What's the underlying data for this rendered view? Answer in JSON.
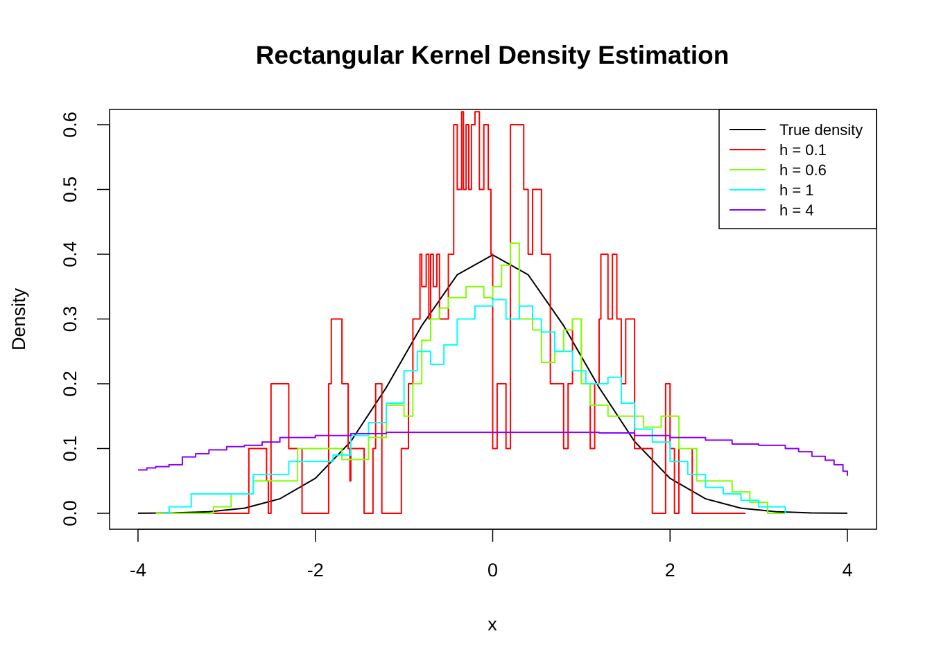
{
  "chart_data": {
    "type": "line",
    "title": "Rectangular Kernel Density Estimation",
    "xlabel": "x",
    "ylabel": "Density",
    "xlim": [
      -4,
      4
    ],
    "ylim": [
      0,
      0.62
    ],
    "x_ticks": [
      -4,
      -2,
      0,
      2,
      4
    ],
    "x_tick_labels": [
      "-4",
      "-2",
      "0",
      "2",
      "4"
    ],
    "y_ticks": [
      0,
      0.1,
      0.2,
      0.3,
      0.4,
      0.5,
      0.6
    ],
    "y_tick_labels": [
      "0.0",
      "0.1",
      "0.2",
      "0.3",
      "0.4",
      "0.5",
      "0.6"
    ],
    "grid": false,
    "legend_position": "top-right",
    "series": [
      {
        "name": "True density",
        "color": "#000000",
        "kind": "smooth",
        "x": [
          -4,
          -3.6,
          -3.2,
          -2.8,
          -2.4,
          -2.0,
          -1.6,
          -1.2,
          -0.8,
          -0.4,
          0,
          0.4,
          0.8,
          1.2,
          1.6,
          2.0,
          2.4,
          2.8,
          3.2,
          3.6,
          4
        ],
        "y": [
          0.0001,
          0.0006,
          0.0024,
          0.0079,
          0.0224,
          0.054,
          0.1109,
          0.1942,
          0.2897,
          0.3683,
          0.3989,
          0.3683,
          0.2897,
          0.1942,
          0.1109,
          0.054,
          0.0224,
          0.0079,
          0.0024,
          0.0006,
          0.0001
        ]
      },
      {
        "name": "h =  0.1",
        "color": "#ff0000",
        "kind": "step",
        "x": [
          -3.3,
          -2.75,
          -2.55,
          -2.53,
          -2.5,
          -2.3,
          -2.15,
          -1.85,
          -1.82,
          -1.78,
          -1.7,
          -1.63,
          -1.61,
          -1.6,
          -1.6,
          -1.45,
          -1.35,
          -1.32,
          -1.25,
          -1.05,
          -1.03,
          -0.95,
          -0.9,
          -0.82,
          -0.8,
          -0.75,
          -0.72,
          -0.7,
          -0.67,
          -0.63,
          -0.6,
          -0.55,
          -0.5,
          -0.44,
          -0.4,
          -0.35,
          -0.33,
          -0.3,
          -0.27,
          -0.24,
          -0.2,
          -0.15,
          -0.1,
          -0.05,
          -0.02,
          0,
          0.05,
          0.15,
          0.2,
          0.35,
          0.4,
          0.45,
          0.55,
          0.6,
          0.65,
          0.8,
          0.85,
          0.9,
          1.0,
          1.1,
          1.15,
          1.2,
          1.22,
          1.3,
          1.35,
          1.4,
          1.45,
          1.5,
          1.6,
          1.8,
          1.95,
          2.0,
          2.05,
          2.1,
          2.25,
          2.3,
          2.4,
          2.85
        ],
        "y": [
          0,
          0.1,
          0.05,
          0,
          0.2,
          0.1,
          0,
          0.2,
          0.3,
          0.3,
          0.2,
          0.1,
          0.05,
          0.1,
          0.1,
          0,
          0.1,
          0.2,
          0,
          0,
          0.1,
          0.2,
          0.3,
          0.4,
          0.35,
          0.4,
          0.3,
          0.4,
          0.35,
          0.4,
          0.3,
          0.3,
          0.4,
          0.6,
          0.5,
          0.62,
          0.5,
          0.6,
          0.5,
          0.6,
          0.62,
          0.5,
          0.6,
          0.5,
          0.4,
          0.1,
          0.2,
          0.1,
          0.6,
          0.5,
          0.4,
          0.5,
          0.4,
          0.4,
          0.2,
          0.1,
          0.2,
          0.3,
          0.2,
          0.1,
          0.2,
          0.3,
          0.4,
          0.3,
          0.4,
          0.3,
          0.2,
          0.3,
          0.1,
          0,
          0.2,
          0.1,
          0,
          0.1,
          0,
          0,
          0,
          0
        ]
      },
      {
        "name": "h =  0.6",
        "color": "#7fff00",
        "kind": "step",
        "x": [
          -3.8,
          -3.3,
          -3.15,
          -2.95,
          -2.7,
          -2.3,
          -2.2,
          -2.0,
          -1.85,
          -1.7,
          -1.55,
          -1.4,
          -1.2,
          -1.0,
          -0.9,
          -0.8,
          -0.7,
          -0.6,
          -0.5,
          -0.3,
          -0.1,
          0.0,
          0.1,
          0.2,
          0.3,
          0.45,
          0.55,
          0.7,
          0.8,
          0.9,
          1.0,
          1.1,
          1.3,
          1.5,
          1.7,
          1.9,
          2.1,
          2.3,
          2.5,
          2.7,
          2.9,
          3.1,
          3.3
        ],
        "y": [
          0,
          0,
          0.01,
          0.03,
          0.05,
          0.05,
          0.1,
          0.1,
          0.1,
          0.083,
          0.083,
          0.117,
          0.167,
          0.15,
          0.2,
          0.267,
          0.3,
          0.317,
          0.333,
          0.35,
          0.333,
          0.35,
          0.383,
          0.417,
          0.3,
          0.283,
          0.233,
          0.25,
          0.283,
          0.3,
          0.2,
          0.167,
          0.15,
          0.15,
          0.133,
          0.15,
          0.1,
          0.05,
          0.05,
          0.033,
          0.017,
          0.0,
          0.0
        ]
      },
      {
        "name": "h =  1",
        "color": "#00ffff",
        "kind": "step",
        "x": [
          -3.7,
          -3.65,
          -3.4,
          -3.0,
          -2.7,
          -2.4,
          -2.3,
          -2.0,
          -1.8,
          -1.6,
          -1.4,
          -1.2,
          -1.0,
          -0.85,
          -0.7,
          -0.55,
          -0.4,
          -0.2,
          0.0,
          0.15,
          0.3,
          0.45,
          0.55,
          0.7,
          0.9,
          1.05,
          1.2,
          1.3,
          1.45,
          1.6,
          1.8,
          2.0,
          2.2,
          2.4,
          2.6,
          2.8,
          3.0,
          3.3
        ],
        "y": [
          0,
          0.01,
          0.03,
          0.03,
          0.06,
          0.06,
          0.08,
          0.08,
          0.09,
          0.12,
          0.14,
          0.17,
          0.22,
          0.25,
          0.23,
          0.26,
          0.3,
          0.32,
          0.33,
          0.3,
          0.32,
          0.3,
          0.28,
          0.25,
          0.22,
          0.2,
          0.2,
          0.21,
          0.17,
          0.13,
          0.11,
          0.08,
          0.06,
          0.04,
          0.03,
          0.02,
          0.01,
          0.0
        ]
      },
      {
        "name": "h =  4",
        "color": "#8a00ff",
        "kind": "step",
        "x": [
          -4.0,
          -3.9,
          -3.8,
          -3.65,
          -3.5,
          -3.35,
          -3.2,
          -3.0,
          -2.8,
          -2.6,
          -2.4,
          -2.0,
          -1.6,
          -1.2,
          -0.8,
          0,
          0.8,
          1.2,
          1.6,
          2.0,
          2.4,
          2.7,
          3.0,
          3.3,
          3.45,
          3.6,
          3.75,
          3.85,
          3.95,
          4.0
        ],
        "y": [
          0.067,
          0.07,
          0.072,
          0.075,
          0.087,
          0.092,
          0.098,
          0.103,
          0.105,
          0.11,
          0.117,
          0.12,
          0.123,
          0.125,
          0.125,
          0.125,
          0.125,
          0.124,
          0.12,
          0.117,
          0.113,
          0.107,
          0.105,
          0.1,
          0.095,
          0.088,
          0.082,
          0.075,
          0.065,
          0.058
        ]
      }
    ]
  },
  "legend": {
    "items": [
      {
        "label": "True density",
        "color": "#000000"
      },
      {
        "label": "h =  0.1",
        "color": "#ff0000"
      },
      {
        "label": "h =  0.6",
        "color": "#7fff00"
      },
      {
        "label": "h =  1",
        "color": "#00ffff"
      },
      {
        "label": "h =  4",
        "color": "#8a00ff"
      }
    ]
  }
}
